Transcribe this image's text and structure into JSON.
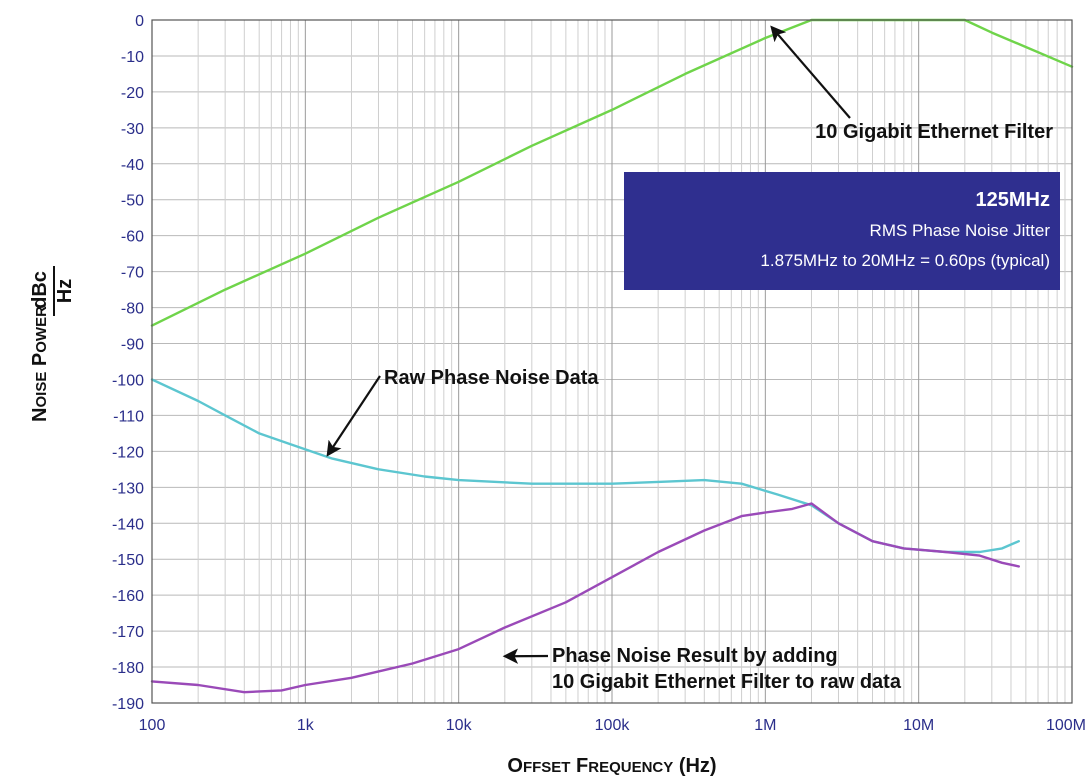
{
  "chart_data": {
    "type": "line",
    "xlabel_parts": [
      {
        "text": "O",
        "small": false
      },
      {
        "text": "FFSET",
        "small": true
      },
      {
        "text": " F",
        "small": false
      },
      {
        "text": "REQUENCY",
        "small": true
      },
      {
        "text": " (Hz)",
        "small": false
      }
    ],
    "ylabel_parts": [
      {
        "text": "N",
        "small": false
      },
      {
        "text": "OISE",
        "small": true
      },
      {
        "text": " P",
        "small": false
      },
      {
        "text": "OWER",
        "small": true
      }
    ],
    "yunit_numerator": "dBc",
    "yunit_denominator": "Hz",
    "x_scale": "log",
    "xlim": [
      100,
      100000000
    ],
    "ylim": [
      -190,
      0
    ],
    "x_ticks": [
      {
        "value": 100,
        "label": "100"
      },
      {
        "value": 1000,
        "label": "1k"
      },
      {
        "value": 10000,
        "label": "10k"
      },
      {
        "value": 100000,
        "label": "100k"
      },
      {
        "value": 1000000,
        "label": "1M"
      },
      {
        "value": 10000000,
        "label": "10M"
      },
      {
        "value": 100000000,
        "label": "100M"
      }
    ],
    "y_ticks": [
      0,
      -10,
      -20,
      -30,
      -40,
      -50,
      -60,
      -70,
      -80,
      -90,
      -100,
      -110,
      -120,
      -130,
      -140,
      -150,
      -160,
      -170,
      -180,
      -190
    ],
    "grid": true,
    "series": [
      {
        "color": "#6fd44a",
        "points": [
          [
            100,
            -85
          ],
          [
            300,
            -75
          ],
          [
            1000,
            -65
          ],
          [
            3000,
            -55
          ],
          [
            10000,
            -45
          ],
          [
            30000,
            -35
          ],
          [
            100000,
            -25
          ],
          [
            300000,
            -15
          ],
          [
            1000000,
            -5
          ],
          [
            2000000,
            0
          ],
          [
            20000000,
            0
          ],
          [
            30000000,
            -3.5
          ],
          [
            50000000,
            -7.5
          ],
          [
            100000000,
            -13
          ]
        ]
      },
      {
        "color": "#5cc6d0",
        "points": [
          [
            100,
            -100
          ],
          [
            200,
            -106
          ],
          [
            300,
            -110
          ],
          [
            500,
            -115
          ],
          [
            800,
            -118
          ],
          [
            1500,
            -122
          ],
          [
            3000,
            -125
          ],
          [
            6000,
            -127
          ],
          [
            10000,
            -128
          ],
          [
            30000,
            -129
          ],
          [
            100000,
            -129
          ],
          [
            200000,
            -128.5
          ],
          [
            400000,
            -128
          ],
          [
            700000,
            -129
          ],
          [
            1200000,
            -132
          ],
          [
            2000000,
            -135
          ],
          [
            3000000,
            -140
          ],
          [
            5000000,
            -145
          ],
          [
            8000000,
            -147
          ],
          [
            15000000,
            -148
          ],
          [
            25000000,
            -148
          ],
          [
            35000000,
            -147
          ],
          [
            45000000,
            -145
          ]
        ]
      },
      {
        "color": "#9a4ab8",
        "points": [
          [
            100,
            -184
          ],
          [
            200,
            -185
          ],
          [
            400,
            -187
          ],
          [
            700,
            -186.5
          ],
          [
            1000,
            -185
          ],
          [
            2000,
            -183
          ],
          [
            5000,
            -179
          ],
          [
            10000,
            -175
          ],
          [
            20000,
            -169
          ],
          [
            50000,
            -162
          ],
          [
            100000,
            -155
          ],
          [
            200000,
            -148
          ],
          [
            400000,
            -142
          ],
          [
            700000,
            -138
          ],
          [
            1000000,
            -137
          ],
          [
            1500000,
            -136
          ],
          [
            2000000,
            -134.5
          ],
          [
            3000000,
            -140
          ],
          [
            5000000,
            -145
          ],
          [
            8000000,
            -147
          ],
          [
            15000000,
            -148
          ],
          [
            25000000,
            -149
          ],
          [
            35000000,
            -151
          ],
          [
            45000000,
            -152
          ]
        ]
      }
    ],
    "annotations": [
      {
        "lines": [
          "10 Gigabit Ethernet Filter"
        ],
        "arrow_to": [
          1100000,
          -2
        ]
      },
      {
        "lines": [
          "Raw Phase Noise Data"
        ],
        "arrow_to": [
          1400,
          -121
        ]
      },
      {
        "lines": [
          "Phase Noise Result by adding",
          "10 Gigabit Ethernet Filter to raw data"
        ],
        "arrow_to": [
          20000,
          -177
        ]
      }
    ],
    "info_box": {
      "title": "125MHz",
      "line1": "RMS Phase Noise Jitter",
      "line2": "1.875MHz to 20MHz = 0.60ps (typical)",
      "color": "#2f2f8f"
    }
  }
}
